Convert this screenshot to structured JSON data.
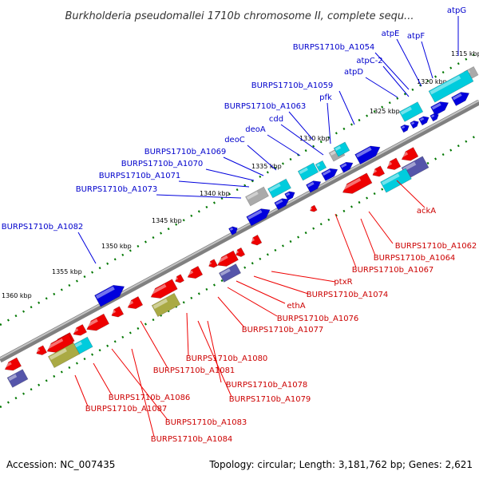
{
  "title": "Burkholderia pseudomallei 1710b chromosome II, complete sequ...",
  "footer": {
    "accession": "Accession: NC_007435",
    "topology": "Topology: circular; Length: 3,181,762 bp; Genes: 2,621"
  },
  "colors": {
    "forward_gene": "#0000dd",
    "reverse_gene": "#ee0000",
    "forward_label": "#0000cc",
    "reverse_label": "#cc0000",
    "backbone": "#808080",
    "tick_marks": "#007700",
    "cyan_feature": "#00ccdd",
    "grey_feature": "#aaaaaa",
    "purple_feature": "#5555aa",
    "olive_feature": "#aaaa44"
  },
  "ticks": [
    {
      "label": "1315 kbp"
    },
    {
      "label": "1320 kbp"
    },
    {
      "label": "1325 kbp"
    },
    {
      "label": "1330 kbp"
    },
    {
      "label": "1335 kbp"
    },
    {
      "label": "1340 kbp"
    },
    {
      "label": "1345 kbp"
    },
    {
      "label": "1350 kbp"
    },
    {
      "label": "1355 kbp"
    },
    {
      "label": "1360 kbp"
    }
  ],
  "forward_labels": [
    "atpG",
    "atpF",
    "atpE",
    "BURPS1710b_A1054",
    "atpC-2",
    "atpD",
    "BURPS1710b_A1059",
    "pfk",
    "BURPS1710b_A1063",
    "cdd",
    "deoA",
    "deoC",
    "BURPS1710b_A1069",
    "BURPS1710b_A1070",
    "BURPS1710b_A1071",
    "BURPS1710b_A1073",
    "BURPS1710b_A1082"
  ],
  "reverse_labels": [
    "ackA",
    "BURPS1710b_A1062",
    "BURPS1710b_A1064",
    "BURPS1710b_A1067",
    "ptxR",
    "BURPS1710b_A1074",
    "ethA",
    "BURPS1710b_A1076",
    "BURPS1710b_A1077",
    "BURPS1710b_A1080",
    "BURPS1710b_A1081",
    "BURPS1710b_A1078",
    "BURPS1710b_A1079",
    "BURPS1710b_A1086",
    "BURPS1710b_A1087",
    "BURPS1710b_A1083",
    "BURPS1710b_A1084"
  ]
}
